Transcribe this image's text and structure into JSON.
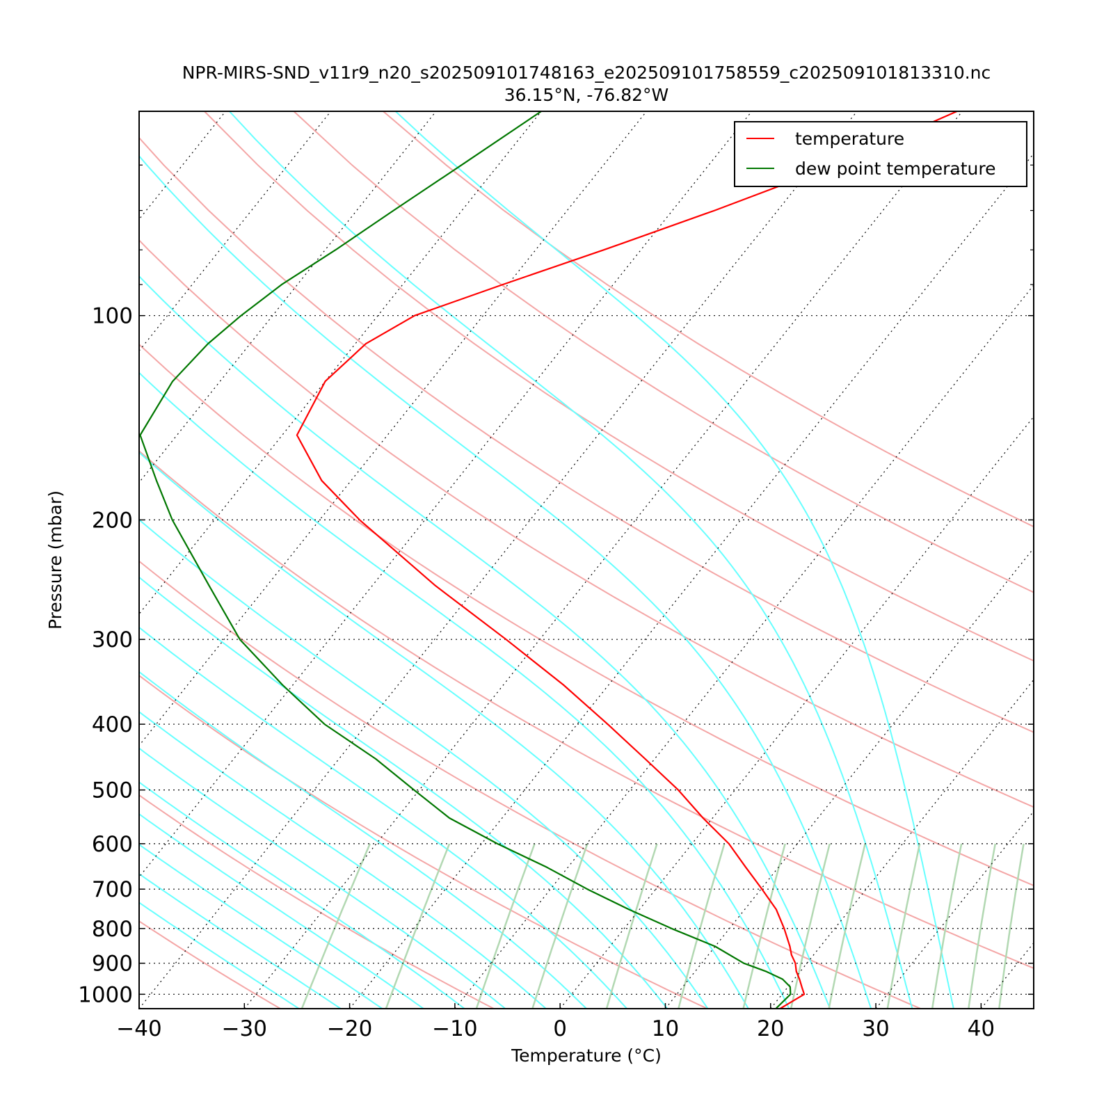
{
  "chart_data": {
    "type": "line",
    "chart_kind": "skew-T log-P diagram",
    "title": "NPR-MIRS-SND_v11r9_n20_s202509101748163_e202509101758559_c202509101813310.nc",
    "subtitle": "36.15°N, -76.82°W",
    "xlabel": "Temperature (°C)",
    "ylabel": "Pressure (mbar)",
    "xlim": [
      -40,
      45
    ],
    "ylim": [
      1050,
      50
    ],
    "y_scale": "log",
    "grid": true,
    "legend_position": "top-right",
    "x_ticks": [
      "−40",
      "−30",
      "−20",
      "−10",
      "0",
      "10",
      "20",
      "30",
      "40"
    ],
    "x_tick_values": [
      -40,
      -30,
      -20,
      -10,
      0,
      10,
      20,
      30,
      40
    ],
    "y_ticks": [
      "100",
      "200",
      "300",
      "400",
      "500",
      "600",
      "700",
      "800",
      "900",
      "1000"
    ],
    "y_tick_values": [
      100,
      200,
      300,
      400,
      500,
      600,
      700,
      800,
      900,
      1000
    ],
    "colors": {
      "temperature": "#ff0000",
      "dew_point": "#007700",
      "dry_adiabats": "#f4a6a6",
      "moist_adiabats": "#66ffff",
      "mixing_ratio": "#b2d8b2",
      "isotherms": "#000000"
    },
    "series": [
      {
        "name": "temperature",
        "pressure": [
          1050,
          1000,
          975,
          950,
          925,
          900,
          875,
          850,
          800,
          750,
          700,
          650,
          600,
          550,
          500,
          450,
          400,
          350,
          300,
          250,
          200,
          175,
          150,
          125,
          110,
          100,
          90,
          80,
          70,
          60,
          50
        ],
        "values": [
          20.9,
          22.1,
          21.3,
          20.5,
          19.6,
          18.9,
          17.9,
          17.1,
          15.2,
          13.0,
          10.1,
          6.9,
          3.5,
          -0.9,
          -5.4,
          -10.9,
          -17.1,
          -24.3,
          -33.2,
          -44.0,
          -56.2,
          -62.8,
          -68.6,
          -70.0,
          -69.0,
          -66.5,
          -60.5,
          -53.5,
          -46.0,
          -38.0,
          -30.5
        ]
      },
      {
        "name": "dew point temperature",
        "pressure": [
          1050,
          1000,
          975,
          950,
          925,
          900,
          850,
          800,
          750,
          700,
          650,
          600,
          550,
          500,
          450,
          400,
          350,
          300,
          250,
          200,
          175,
          150,
          125,
          110,
          100,
          90,
          80,
          70,
          60,
          50
        ],
        "values": [
          20.5,
          20.8,
          20.2,
          18.9,
          16.7,
          14.0,
          10.0,
          4.5,
          -1.0,
          -6.5,
          -12.0,
          -18.5,
          -25.0,
          -30.5,
          -36.5,
          -44.0,
          -51.0,
          -58.5,
          -65.5,
          -74.0,
          -78.5,
          -83.5,
          -84.5,
          -84.0,
          -83.0,
          -81.5,
          -79.0,
          -76.5,
          -73.5,
          -70.0
        ]
      }
    ],
    "legend": [
      "temperature",
      "dew point temperature"
    ]
  }
}
